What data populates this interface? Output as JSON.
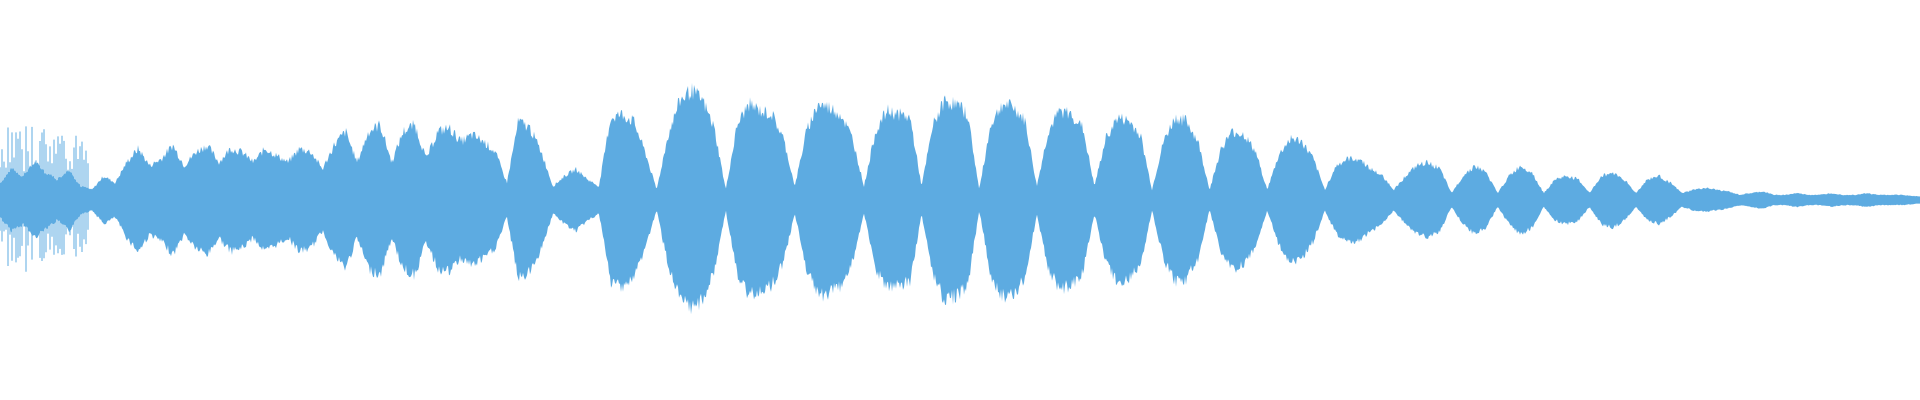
{
  "waveform": {
    "color": "#5DABE1",
    "background": "#ffffff",
    "envelope": [
      [
        0.0,
        0.1
      ],
      [
        0.006,
        0.18
      ],
      [
        0.012,
        0.14
      ],
      [
        0.018,
        0.22
      ],
      [
        0.024,
        0.16
      ],
      [
        0.03,
        0.12
      ],
      [
        0.036,
        0.18
      ],
      [
        0.042,
        0.08
      ],
      [
        0.048,
        0.06
      ],
      [
        0.054,
        0.14
      ],
      [
        0.06,
        0.1
      ],
      [
        0.066,
        0.22
      ],
      [
        0.072,
        0.3
      ],
      [
        0.078,
        0.2
      ],
      [
        0.084,
        0.24
      ],
      [
        0.09,
        0.32
      ],
      [
        0.096,
        0.2
      ],
      [
        0.102,
        0.28
      ],
      [
        0.108,
        0.32
      ],
      [
        0.114,
        0.22
      ],
      [
        0.12,
        0.3
      ],
      [
        0.126,
        0.28
      ],
      [
        0.132,
        0.22
      ],
      [
        0.138,
        0.3
      ],
      [
        0.144,
        0.26
      ],
      [
        0.15,
        0.22
      ],
      [
        0.156,
        0.3
      ],
      [
        0.162,
        0.28
      ],
      [
        0.168,
        0.18
      ],
      [
        0.174,
        0.32
      ],
      [
        0.18,
        0.4
      ],
      [
        0.186,
        0.22
      ],
      [
        0.192,
        0.4
      ],
      [
        0.198,
        0.44
      ],
      [
        0.204,
        0.22
      ],
      [
        0.21,
        0.4
      ],
      [
        0.216,
        0.44
      ],
      [
        0.222,
        0.24
      ],
      [
        0.228,
        0.4
      ],
      [
        0.234,
        0.42
      ],
      [
        0.24,
        0.34
      ],
      [
        0.246,
        0.38
      ],
      [
        0.252,
        0.34
      ],
      [
        0.258,
        0.28
      ],
      [
        0.264,
        0.1
      ],
      [
        0.27,
        0.46
      ],
      [
        0.276,
        0.42
      ],
      [
        0.282,
        0.28
      ],
      [
        0.288,
        0.08
      ],
      [
        0.294,
        0.14
      ],
      [
        0.3,
        0.18
      ],
      [
        0.306,
        0.12
      ],
      [
        0.312,
        0.08
      ],
      [
        0.318,
        0.48
      ],
      [
        0.324,
        0.5
      ],
      [
        0.33,
        0.46
      ],
      [
        0.336,
        0.28
      ],
      [
        0.342,
        0.06
      ],
      [
        0.348,
        0.38
      ],
      [
        0.354,
        0.58
      ],
      [
        0.36,
        0.64
      ],
      [
        0.366,
        0.58
      ],
      [
        0.372,
        0.42
      ],
      [
        0.378,
        0.06
      ],
      [
        0.384,
        0.44
      ],
      [
        0.39,
        0.56
      ],
      [
        0.396,
        0.52
      ],
      [
        0.402,
        0.5
      ],
      [
        0.408,
        0.36
      ],
      [
        0.414,
        0.08
      ],
      [
        0.42,
        0.4
      ],
      [
        0.426,
        0.56
      ],
      [
        0.432,
        0.54
      ],
      [
        0.438,
        0.5
      ],
      [
        0.444,
        0.36
      ],
      [
        0.45,
        0.08
      ],
      [
        0.456,
        0.4
      ],
      [
        0.462,
        0.52
      ],
      [
        0.468,
        0.5
      ],
      [
        0.474,
        0.48
      ],
      [
        0.48,
        0.08
      ],
      [
        0.486,
        0.44
      ],
      [
        0.492,
        0.58
      ],
      [
        0.498,
        0.56
      ],
      [
        0.504,
        0.5
      ],
      [
        0.51,
        0.06
      ],
      [
        0.516,
        0.44
      ],
      [
        0.522,
        0.56
      ],
      [
        0.528,
        0.54
      ],
      [
        0.534,
        0.46
      ],
      [
        0.54,
        0.08
      ],
      [
        0.546,
        0.4
      ],
      [
        0.552,
        0.52
      ],
      [
        0.558,
        0.5
      ],
      [
        0.564,
        0.42
      ],
      [
        0.57,
        0.08
      ],
      [
        0.576,
        0.36
      ],
      [
        0.582,
        0.48
      ],
      [
        0.588,
        0.46
      ],
      [
        0.594,
        0.38
      ],
      [
        0.6,
        0.06
      ],
      [
        0.606,
        0.34
      ],
      [
        0.612,
        0.48
      ],
      [
        0.618,
        0.46
      ],
      [
        0.624,
        0.34
      ],
      [
        0.63,
        0.06
      ],
      [
        0.636,
        0.3
      ],
      [
        0.642,
        0.4
      ],
      [
        0.648,
        0.38
      ],
      [
        0.654,
        0.28
      ],
      [
        0.66,
        0.06
      ],
      [
        0.666,
        0.26
      ],
      [
        0.672,
        0.36
      ],
      [
        0.678,
        0.34
      ],
      [
        0.684,
        0.24
      ],
      [
        0.69,
        0.06
      ],
      [
        0.696,
        0.2
      ],
      [
        0.702,
        0.24
      ],
      [
        0.708,
        0.24
      ],
      [
        0.714,
        0.18
      ],
      [
        0.72,
        0.14
      ],
      [
        0.726,
        0.06
      ],
      [
        0.732,
        0.14
      ],
      [
        0.738,
        0.2
      ],
      [
        0.744,
        0.22
      ],
      [
        0.75,
        0.18
      ],
      [
        0.756,
        0.04
      ],
      [
        0.762,
        0.14
      ],
      [
        0.768,
        0.2
      ],
      [
        0.774,
        0.16
      ],
      [
        0.78,
        0.04
      ],
      [
        0.786,
        0.14
      ],
      [
        0.792,
        0.2
      ],
      [
        0.798,
        0.16
      ],
      [
        0.804,
        0.04
      ],
      [
        0.81,
        0.12
      ],
      [
        0.816,
        0.14
      ],
      [
        0.822,
        0.12
      ],
      [
        0.828,
        0.04
      ],
      [
        0.834,
        0.14
      ],
      [
        0.84,
        0.16
      ],
      [
        0.846,
        0.12
      ],
      [
        0.852,
        0.04
      ],
      [
        0.858,
        0.12
      ],
      [
        0.864,
        0.14
      ],
      [
        0.87,
        0.1
      ],
      [
        0.876,
        0.04
      ],
      [
        0.882,
        0.06
      ],
      [
        0.888,
        0.07
      ],
      [
        0.894,
        0.06
      ],
      [
        0.9,
        0.05
      ],
      [
        0.906,
        0.03
      ],
      [
        0.912,
        0.04
      ],
      [
        0.918,
        0.05
      ],
      [
        0.924,
        0.03
      ],
      [
        0.93,
        0.03
      ],
      [
        0.936,
        0.04
      ],
      [
        0.942,
        0.03
      ],
      [
        0.948,
        0.03
      ],
      [
        0.954,
        0.04
      ],
      [
        0.96,
        0.03
      ],
      [
        0.966,
        0.03
      ],
      [
        0.972,
        0.04
      ],
      [
        0.978,
        0.03
      ],
      [
        0.984,
        0.03
      ],
      [
        0.99,
        0.03
      ],
      [
        1.0,
        0.02
      ]
    ]
  }
}
